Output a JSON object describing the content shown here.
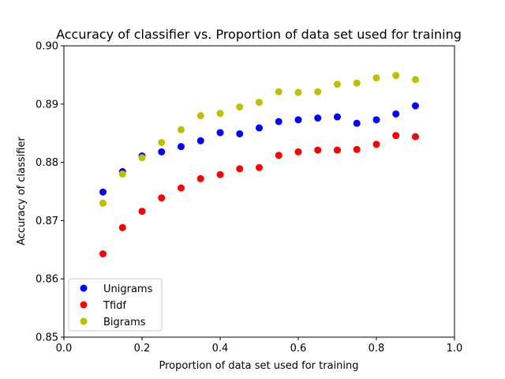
{
  "chart_data": {
    "type": "scatter",
    "title": "Accuracy of classifier vs. Proportion of data set used for training",
    "xlabel": "Proportion of data set used for training",
    "ylabel": "Accuracy of classifier",
    "xlim": [
      0.0,
      1.0
    ],
    "ylim": [
      0.85,
      0.9
    ],
    "xticks": [
      "0.0",
      "0.2",
      "0.4",
      "0.6",
      "0.8",
      "1.0"
    ],
    "yticks": [
      "0.85",
      "0.86",
      "0.87",
      "0.88",
      "0.89",
      "0.90"
    ],
    "grid": false,
    "legend_position": "lower-left",
    "x": [
      0.1,
      0.15,
      0.2,
      0.25,
      0.3,
      0.35,
      0.4,
      0.45,
      0.5,
      0.55,
      0.6,
      0.65,
      0.7,
      0.75,
      0.8,
      0.85,
      0.9
    ],
    "series": [
      {
        "name": "Unigrams",
        "color": "#0000ff",
        "values": [
          0.8749,
          0.8784,
          0.8811,
          0.8818,
          0.8827,
          0.8837,
          0.8851,
          0.8849,
          0.8859,
          0.887,
          0.8873,
          0.8876,
          0.8878,
          0.8867,
          0.8873,
          0.8883,
          0.8897
        ]
      },
      {
        "name": "Tfidf",
        "color": "#ff0000",
        "values": [
          0.8643,
          0.8688,
          0.8716,
          0.8739,
          0.8756,
          0.8772,
          0.8779,
          0.8789,
          0.8791,
          0.8812,
          0.8818,
          0.8821,
          0.8821,
          0.8822,
          0.8831,
          0.8846,
          0.8844
        ]
      },
      {
        "name": "Bigrams",
        "color": "#bfbf00",
        "values": [
          0.873,
          0.878,
          0.8808,
          0.8834,
          0.8856,
          0.888,
          0.8884,
          0.8895,
          0.8903,
          0.8921,
          0.892,
          0.8921,
          0.8934,
          0.8936,
          0.8945,
          0.8949,
          0.8942
        ]
      }
    ]
  }
}
